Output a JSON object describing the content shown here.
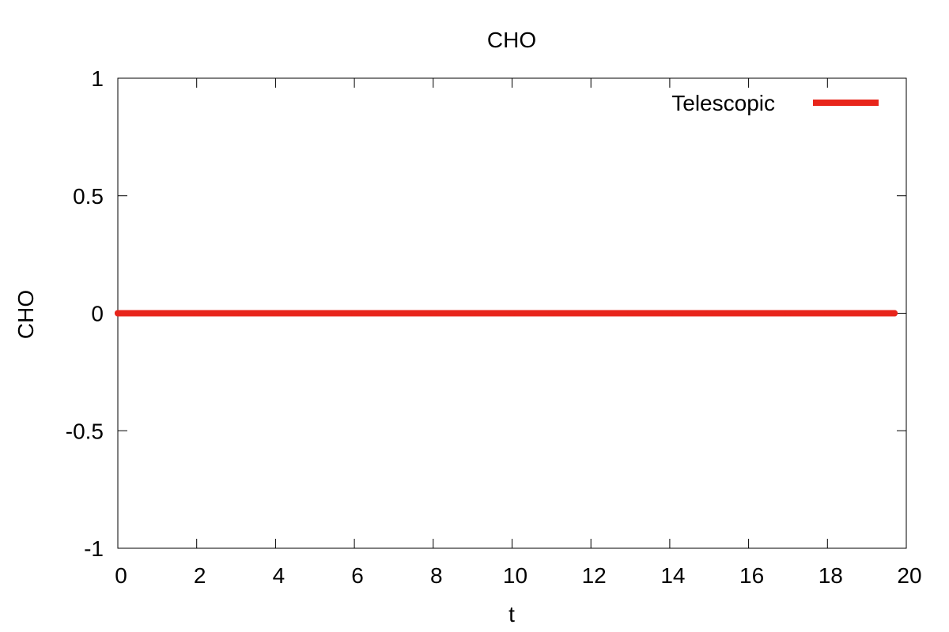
{
  "chart_data": {
    "type": "line",
    "title": "CHO",
    "xlabel": "t",
    "ylabel": "CHO",
    "xlim": [
      0,
      20
    ],
    "ylim": [
      -1,
      1
    ],
    "x_ticks": [
      "0",
      "2",
      "4",
      "6",
      "8",
      "10",
      "12",
      "14",
      "16",
      "18",
      "20"
    ],
    "x_tick_values": [
      0,
      2,
      4,
      6,
      8,
      10,
      12,
      14,
      16,
      18,
      20
    ],
    "y_ticks": [
      "-1",
      "-0.5",
      "0",
      "0.5",
      "1"
    ],
    "y_tick_values": [
      -1,
      -0.5,
      0,
      0.5,
      1
    ],
    "grid": false,
    "legend_position": "top-right",
    "series": [
      {
        "name": "Telescopic",
        "color": "#e8251b",
        "x": [
          0,
          1,
          2,
          3,
          4,
          5,
          6,
          7,
          8,
          9,
          10,
          11,
          12,
          13,
          14,
          15,
          16,
          17,
          18,
          19,
          19.7
        ],
        "y": [
          0,
          0,
          0,
          0,
          0,
          0,
          0,
          0,
          0,
          0,
          0,
          0,
          0,
          0,
          0,
          0,
          0,
          0,
          0,
          0,
          0
        ]
      }
    ]
  }
}
